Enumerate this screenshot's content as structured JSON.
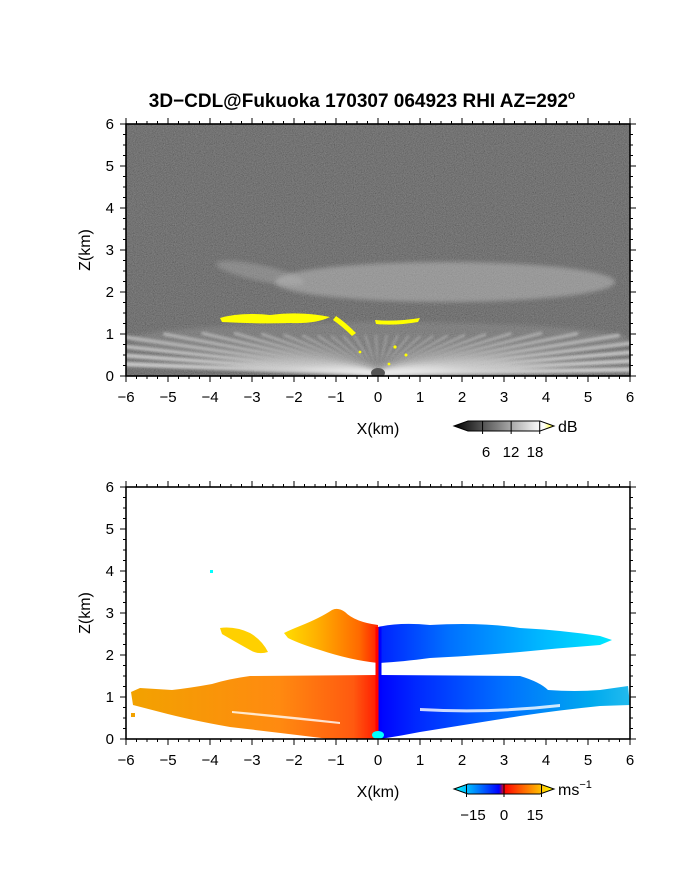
{
  "figure": {
    "title": "3D−CDL@Fukuoka 170307 064923 RHI AZ=292",
    "title_superscript": "o"
  },
  "chart_data": [
    {
      "type": "heatmap",
      "variable": "backscatter",
      "xlabel": "X(km)",
      "ylabel": "Z(km)",
      "xlim": [
        -6,
        6
      ],
      "ylim": [
        0,
        6
      ],
      "xticks": [
        "−6",
        "−5",
        "−4",
        "−3",
        "−2",
        "−1",
        "0",
        "1",
        "2",
        "3",
        "4",
        "5",
        "6"
      ],
      "yticks": [
        "0",
        "1",
        "2",
        "3",
        "4",
        "5",
        "6"
      ],
      "colorbar": {
        "unit": "dB",
        "ticks": [
          "6",
          "12",
          "18"
        ],
        "tick_values": [
          6,
          12,
          18
        ],
        "range": [
          0,
          21
        ],
        "colormap": [
          "#000000",
          "#ffffff",
          "#ffff00"
        ]
      },
      "features": [
        {
          "name": "scan fan",
          "x_range": [
            -6,
            6
          ],
          "z_range": [
            0,
            1.4
          ]
        },
        {
          "name": "elevated layer",
          "x_range": [
            -3.5,
            6
          ],
          "z_range": [
            1.6,
            2.9
          ]
        },
        {
          "name": "strong echo band",
          "x_range": [
            -3.9,
            -0.9
          ],
          "z_range": [
            1.2,
            1.5
          ],
          "color": "#ffff00"
        }
      ]
    },
    {
      "type": "heatmap",
      "variable": "doppler velocity",
      "xlabel": "X(km)",
      "ylabel": "Z(km)",
      "xlim": [
        -6,
        6
      ],
      "ylim": [
        0,
        6
      ],
      "xticks": [
        "−6",
        "−5",
        "−4",
        "−3",
        "−2",
        "−1",
        "0",
        "1",
        "2",
        "3",
        "4",
        "5",
        "6"
      ],
      "yticks": [
        "0",
        "1",
        "2",
        "3",
        "4",
        "5",
        "6"
      ],
      "colorbar": {
        "unit": "ms",
        "unit_superscript": "−1",
        "ticks": [
          "−15",
          "0",
          "15"
        ],
        "tick_values": [
          -15,
          0,
          15
        ],
        "range": [
          -20,
          20
        ],
        "colormap": [
          "#00ffff",
          "#0000ff",
          "#ff0000",
          "#ffff00"
        ]
      },
      "features": [
        {
          "name": "lower layer left",
          "x_range": [
            -5.8,
            0
          ],
          "z_range": [
            0,
            1.5
          ],
          "velocity": 12
        },
        {
          "name": "lower layer right",
          "x_range": [
            0,
            6
          ],
          "z_range": [
            0,
            1.5
          ],
          "velocity": -12
        },
        {
          "name": "upper layer left",
          "x_range": [
            -3.7,
            0
          ],
          "z_range": [
            1.8,
            2.9
          ],
          "velocity": 12
        },
        {
          "name": "upper layer right",
          "x_range": [
            0,
            5.7
          ],
          "z_range": [
            1.9,
            2.8
          ],
          "velocity": -12
        }
      ]
    }
  ]
}
